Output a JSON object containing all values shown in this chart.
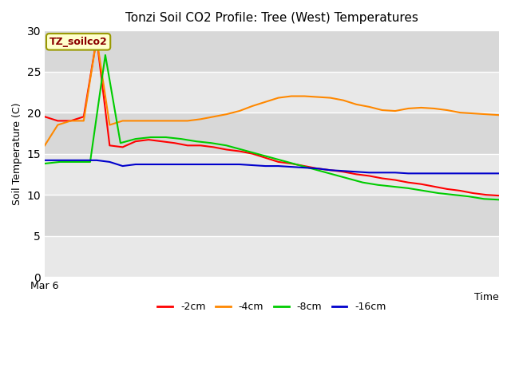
{
  "title": "Tonzi Soil CO2 Profile: Tree (West) Temperatures",
  "xlabel": "Time",
  "ylabel": "Soil Temperature (C)",
  "ylim": [
    0,
    30
  ],
  "yticks": [
    0,
    5,
    10,
    15,
    20,
    25,
    30
  ],
  "xstart_label": "Mar 6",
  "legend_label": "TZ_soilco2",
  "fig_bg": "#ffffff",
  "band_colors": [
    "#e8e8e8",
    "#d8d8d8"
  ],
  "line_colors": [
    "#ff0000",
    "#ff8800",
    "#00cc00",
    "#0000cc"
  ],
  "line_labels": [
    "-2cm",
    "-4cm",
    "-8cm",
    "-16cm"
  ],
  "series": {
    "cm2": [
      19.5,
      19.0,
      19.0,
      19.5,
      29.0,
      16.0,
      15.8,
      16.5,
      16.7,
      16.5,
      16.3,
      16.0,
      16.0,
      15.8,
      15.5,
      15.3,
      15.0,
      14.5,
      14.0,
      13.8,
      13.5,
      13.2,
      13.0,
      12.8,
      12.5,
      12.3,
      12.0,
      11.8,
      11.5,
      11.3,
      11.0,
      10.7,
      10.5,
      10.2,
      10.0,
      9.9
    ],
    "cm4": [
      16.0,
      18.5,
      19.0,
      19.0,
      29.0,
      18.5,
      19.0,
      19.0,
      19.0,
      19.0,
      19.0,
      19.0,
      19.2,
      19.5,
      19.8,
      20.2,
      20.8,
      21.3,
      21.8,
      22.0,
      22.0,
      21.9,
      21.8,
      21.5,
      21.0,
      20.7,
      20.3,
      20.2,
      20.5,
      20.6,
      20.5,
      20.3,
      20.0,
      19.9,
      19.8,
      19.7
    ],
    "cm8": [
      13.8,
      14.0,
      14.0,
      14.0,
      27.0,
      16.3,
      16.8,
      17.0,
      17.0,
      16.8,
      16.5,
      16.3,
      16.0,
      15.5,
      15.0,
      14.5,
      14.0,
      13.5,
      13.0,
      12.5,
      12.0,
      11.5,
      11.2,
      11.0,
      10.8,
      10.5,
      10.2,
      10.0,
      9.8,
      9.5,
      9.4
    ],
    "cm16": [
      14.2,
      14.2,
      14.2,
      14.2,
      14.2,
      14.0,
      13.5,
      13.7,
      13.7,
      13.7,
      13.7,
      13.7,
      13.7,
      13.7,
      13.7,
      13.7,
      13.6,
      13.5,
      13.5,
      13.4,
      13.3,
      13.2,
      13.0,
      12.9,
      12.8,
      12.7,
      12.7,
      12.7,
      12.6,
      12.6,
      12.6,
      12.6,
      12.6,
      12.6,
      12.6,
      12.6
    ]
  }
}
